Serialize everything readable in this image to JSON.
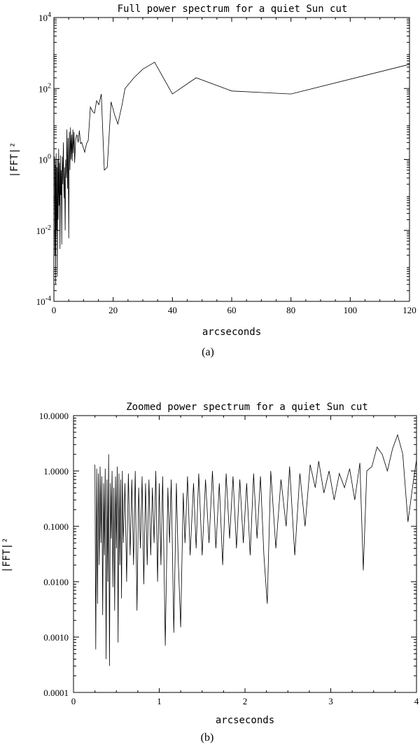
{
  "chart_data": [
    {
      "type": "line",
      "title": "Full power spectrum for a quiet Sun cut",
      "xlabel": "arcseconds",
      "ylabel": "|FFT|²",
      "caption": "(a)",
      "xlim": [
        0,
        120
      ],
      "ylim": [
        0.0001,
        10000
      ],
      "yscale": "log",
      "x_ticks": [
        "0",
        "20",
        "40",
        "60",
        "80",
        "100",
        "120"
      ],
      "y_ticks": [
        {
          "base": "10",
          "exp": "-4",
          "value": 0.0001
        },
        {
          "base": "10",
          "exp": "-2",
          "value": 0.01
        },
        {
          "base": "10",
          "exp": "0",
          "value": 1
        },
        {
          "base": "10",
          "exp": "2",
          "value": 100
        },
        {
          "base": "10",
          "exp": "4",
          "value": 10000
        }
      ],
      "grid": false,
      "points": [
        [
          0.25,
          1.2
        ],
        [
          0.35,
          0.002
        ],
        [
          0.5,
          0.7
        ],
        [
          0.6,
          0.0003
        ],
        [
          0.75,
          1.5
        ],
        [
          0.9,
          0.01
        ],
        [
          1.0,
          0.6
        ],
        [
          1.15,
          0.0005
        ],
        [
          1.3,
          1.0
        ],
        [
          1.45,
          0.02
        ],
        [
          1.6,
          2.0
        ],
        [
          1.75,
          0.05
        ],
        [
          1.9,
          0.8
        ],
        [
          2.05,
          0.003
        ],
        [
          2.2,
          1.3
        ],
        [
          2.35,
          0.1
        ],
        [
          2.5,
          0.5
        ],
        [
          2.65,
          0.004
        ],
        [
          2.8,
          1.2
        ],
        [
          3.0,
          0.2
        ],
        [
          3.2,
          3.0
        ],
        [
          3.4,
          0.08
        ],
        [
          3.6,
          0.6
        ],
        [
          3.8,
          0.01
        ],
        [
          4.0,
          1.0
        ],
        [
          4.2,
          0.3
        ],
        [
          4.4,
          7.0
        ],
        [
          4.6,
          0.15
        ],
        [
          4.8,
          4.0
        ],
        [
          5.0,
          0.006
        ],
        [
          5.2,
          6.0
        ],
        [
          5.4,
          0.5
        ],
        [
          5.6,
          8.0
        ],
        [
          5.8,
          1.0
        ],
        [
          6.0,
          5.0
        ],
        [
          6.2,
          0.9
        ],
        [
          6.4,
          7.0
        ],
        [
          6.6,
          1.5
        ],
        [
          6.8,
          6.0
        ],
        [
          7.0,
          0.8
        ],
        [
          7.4,
          4.0
        ],
        [
          7.8,
          5.0
        ],
        [
          8.2,
          3.0
        ],
        [
          8.6,
          6.5
        ],
        [
          9.0,
          2.8
        ],
        [
          9.4,
          3.0
        ],
        [
          9.8,
          2.3
        ],
        [
          10.4,
          1.6
        ],
        [
          11.0,
          2.8
        ],
        [
          11.6,
          3.5
        ],
        [
          12.3,
          30
        ],
        [
          13.0,
          23
        ],
        [
          13.7,
          20
        ],
        [
          14.4,
          45
        ],
        [
          15.2,
          35
        ],
        [
          16.0,
          70
        ],
        [
          17.0,
          0.5
        ],
        [
          18.0,
          0.6
        ],
        [
          19.3,
          42
        ],
        [
          20.5,
          18
        ],
        [
          21.6,
          10
        ],
        [
          23.0,
          35
        ],
        [
          24.0,
          100
        ],
        [
          27.0,
          200
        ],
        [
          30.0,
          350
        ],
        [
          34.0,
          550
        ],
        [
          40.0,
          70
        ],
        [
          48.0,
          200
        ],
        [
          60.0,
          85
        ],
        [
          80.0,
          70
        ],
        [
          120.0,
          480
        ]
      ]
    },
    {
      "type": "line",
      "title": "Zoomed power spectrum for a quiet Sun cut",
      "xlabel": "arcseconds",
      "ylabel": "|FFT|²",
      "caption": "(b)",
      "xlim": [
        0,
        4
      ],
      "ylim": [
        0.0001,
        10
      ],
      "yscale": "log",
      "x_ticks": [
        "0",
        "1",
        "2",
        "3",
        "4"
      ],
      "y_ticks": [
        "0.0001",
        "0.0010",
        "0.0100",
        "0.1000",
        "1.0000",
        "10.0000"
      ],
      "grid": false,
      "points": [
        [
          0.25,
          1.3
        ],
        [
          0.26,
          0.0006
        ],
        [
          0.27,
          1.1
        ],
        [
          0.28,
          0.004
        ],
        [
          0.29,
          0.9
        ],
        [
          0.3,
          0.02
        ],
        [
          0.31,
          1.2
        ],
        [
          0.32,
          0.05
        ],
        [
          0.33,
          0.8
        ],
        [
          0.34,
          0.0025
        ],
        [
          0.35,
          0.6
        ],
        [
          0.36,
          0.03
        ],
        [
          0.37,
          1.1
        ],
        [
          0.38,
          0.0004
        ],
        [
          0.39,
          0.7
        ],
        [
          0.4,
          0.01
        ],
        [
          0.41,
          2.0
        ],
        [
          0.42,
          0.0003
        ],
        [
          0.43,
          0.6
        ],
        [
          0.44,
          0.06
        ],
        [
          0.45,
          1.0
        ],
        [
          0.46,
          0.008
        ],
        [
          0.47,
          0.5
        ],
        [
          0.48,
          0.003
        ],
        [
          0.49,
          0.8
        ],
        [
          0.5,
          0.04
        ],
        [
          0.51,
          1.2
        ],
        [
          0.52,
          0.0008
        ],
        [
          0.53,
          0.9
        ],
        [
          0.54,
          0.02
        ],
        [
          0.55,
          0.7
        ],
        [
          0.56,
          0.005
        ],
        [
          0.57,
          1.0
        ],
        [
          0.58,
          0.05
        ],
        [
          0.6,
          0.6
        ],
        [
          0.62,
          0.01
        ],
        [
          0.64,
          0.9
        ],
        [
          0.66,
          0.03
        ],
        [
          0.68,
          0.7
        ],
        [
          0.7,
          0.02
        ],
        [
          0.72,
          1.0
        ],
        [
          0.74,
          0.003
        ],
        [
          0.76,
          0.5
        ],
        [
          0.78,
          0.04
        ],
        [
          0.8,
          0.8
        ],
        [
          0.82,
          0.009
        ],
        [
          0.84,
          0.6
        ],
        [
          0.86,
          0.02
        ],
        [
          0.88,
          0.7
        ],
        [
          0.9,
          0.03
        ],
        [
          0.92,
          0.5
        ],
        [
          0.94,
          0.05
        ],
        [
          0.96,
          1.0
        ],
        [
          0.98,
          0.01
        ],
        [
          1.0,
          0.6
        ],
        [
          1.02,
          0.02
        ],
        [
          1.04,
          0.8
        ],
        [
          1.07,
          0.0007
        ],
        [
          1.1,
          0.5
        ],
        [
          1.12,
          0.05
        ],
        [
          1.14,
          0.7
        ],
        [
          1.17,
          0.0012
        ],
        [
          1.2,
          0.6
        ],
        [
          1.22,
          0.03
        ],
        [
          1.25,
          0.0015
        ],
        [
          1.28,
          0.4
        ],
        [
          1.3,
          0.05
        ],
        [
          1.33,
          0.8
        ],
        [
          1.36,
          0.03
        ],
        [
          1.4,
          0.6
        ],
        [
          1.43,
          0.04
        ],
        [
          1.46,
          0.9
        ],
        [
          1.5,
          0.03
        ],
        [
          1.54,
          0.7
        ],
        [
          1.58,
          0.05
        ],
        [
          1.62,
          1.0
        ],
        [
          1.66,
          0.04
        ],
        [
          1.7,
          0.6
        ],
        [
          1.74,
          0.02
        ],
        [
          1.78,
          0.9
        ],
        [
          1.82,
          0.06
        ],
        [
          1.86,
          0.8
        ],
        [
          1.9,
          0.04
        ],
        [
          1.94,
          0.7
        ],
        [
          1.98,
          0.05
        ],
        [
          2.02,
          0.6
        ],
        [
          2.06,
          0.03
        ],
        [
          2.1,
          0.9
        ],
        [
          2.14,
          0.06
        ],
        [
          2.18,
          0.8
        ],
        [
          2.22,
          0.03
        ],
        [
          2.26,
          0.004
        ],
        [
          2.3,
          1.0
        ],
        [
          2.36,
          0.04
        ],
        [
          2.42,
          0.7
        ],
        [
          2.48,
          0.1
        ],
        [
          2.52,
          1.2
        ],
        [
          2.58,
          0.03
        ],
        [
          2.64,
          0.9
        ],
        [
          2.7,
          0.1
        ],
        [
          2.76,
          1.3
        ],
        [
          2.82,
          0.5
        ],
        [
          2.86,
          1.5
        ],
        [
          2.92,
          0.4
        ],
        [
          2.98,
          1.0
        ],
        [
          3.04,
          0.3
        ],
        [
          3.1,
          0.9
        ],
        [
          3.16,
          0.5
        ],
        [
          3.22,
          1.1
        ],
        [
          3.28,
          0.3
        ],
        [
          3.34,
          1.4
        ],
        [
          3.38,
          0.016
        ],
        [
          3.42,
          1.0
        ],
        [
          3.48,
          1.2
        ],
        [
          3.54,
          2.7
        ],
        [
          3.6,
          2.0
        ],
        [
          3.66,
          1.0
        ],
        [
          3.72,
          2.5
        ],
        [
          3.78,
          4.5
        ],
        [
          3.84,
          2.0
        ],
        [
          3.9,
          0.12
        ],
        [
          3.96,
          0.6
        ],
        [
          4.0,
          1.6
        ]
      ]
    }
  ]
}
